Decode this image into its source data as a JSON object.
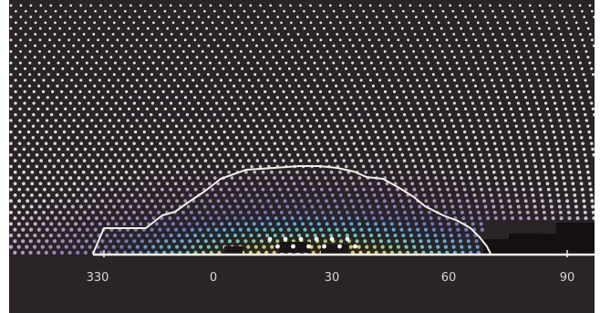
{
  "axis": {
    "ticks": [
      "330",
      "0",
      "30",
      "60",
      "90"
    ]
  },
  "colors": {
    "background": "#2b2426",
    "outline": "#f2efe8",
    "baseline": "#f2efe8"
  }
}
